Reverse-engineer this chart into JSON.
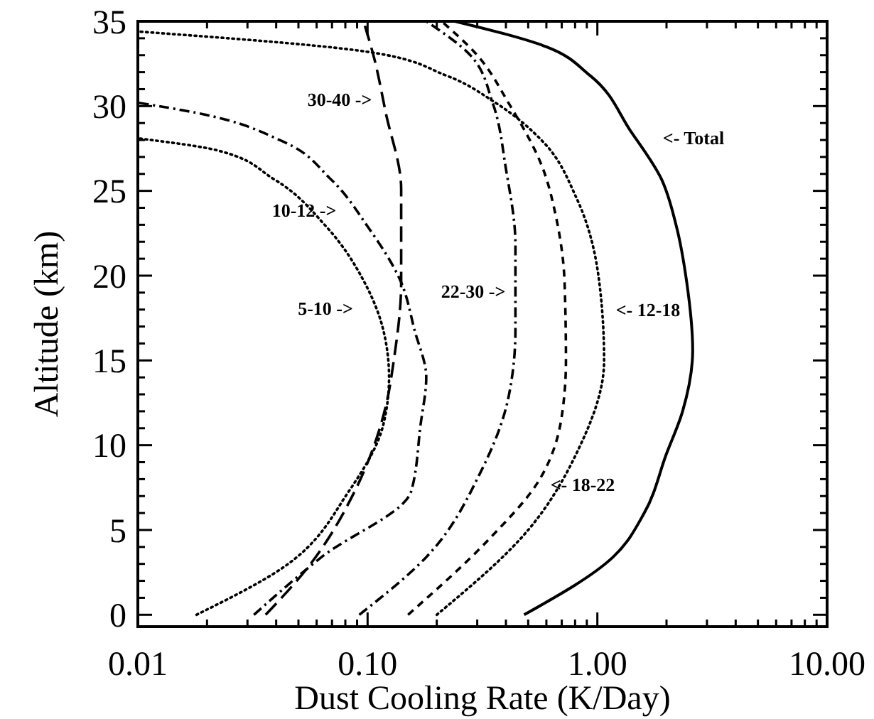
{
  "chart_data": {
    "type": "line",
    "xlabel": "Dust Cooling Rate (K/Day)",
    "ylabel": "Altitude (km)",
    "log": "x",
    "xlim": [
      0.01,
      10
    ],
    "ylim": [
      -0.7,
      35
    ],
    "xticks": [
      {
        "value": 0.01,
        "label": "0.01"
      },
      {
        "value": 0.02,
        "label": null
      },
      {
        "value": 0.03,
        "label": null
      },
      {
        "value": 0.04,
        "label": null
      },
      {
        "value": 0.05,
        "label": null
      },
      {
        "value": 0.06,
        "label": null
      },
      {
        "value": 0.07,
        "label": null
      },
      {
        "value": 0.08,
        "label": null
      },
      {
        "value": 0.09,
        "label": null
      },
      {
        "value": 0.1,
        "label": "0.10"
      },
      {
        "value": 0.2,
        "label": null
      },
      {
        "value": 0.3,
        "label": null
      },
      {
        "value": 0.4,
        "label": null
      },
      {
        "value": 0.5,
        "label": null
      },
      {
        "value": 0.6,
        "label": null
      },
      {
        "value": 0.7,
        "label": null
      },
      {
        "value": 0.8,
        "label": null
      },
      {
        "value": 0.9,
        "label": null
      },
      {
        "value": 1,
        "label": "1.00"
      },
      {
        "value": 2,
        "label": null
      },
      {
        "value": 3,
        "label": null
      },
      {
        "value": 4,
        "label": null
      },
      {
        "value": 5,
        "label": null
      },
      {
        "value": 6,
        "label": null
      },
      {
        "value": 7,
        "label": null
      },
      {
        "value": 8,
        "label": null
      },
      {
        "value": 9,
        "label": null
      },
      {
        "value": 10,
        "label": "10.00"
      }
    ],
    "yticks": [
      0,
      {
        "value": 1,
        "label": null
      },
      {
        "value": 2,
        "label": null
      },
      {
        "value": 3,
        "label": null
      },
      {
        "value": 4,
        "label": null
      },
      5,
      {
        "value": 6,
        "label": null
      },
      {
        "value": 7,
        "label": null
      },
      {
        "value": 8,
        "label": null
      },
      {
        "value": 9,
        "label": null
      },
      10,
      {
        "value": 11,
        "label": null
      },
      {
        "value": 12,
        "label": null
      },
      {
        "value": 13,
        "label": null
      },
      {
        "value": 14,
        "label": null
      },
      15,
      {
        "value": 16,
        "label": null
      },
      {
        "value": 17,
        "label": null
      },
      {
        "value": 18,
        "label": null
      },
      {
        "value": 19,
        "label": null
      },
      20,
      {
        "value": 21,
        "label": null
      },
      {
        "value": 22,
        "label": null
      },
      {
        "value": 23,
        "label": null
      },
      {
        "value": 24,
        "label": null
      },
      25,
      {
        "value": 26,
        "label": null
      },
      {
        "value": 27,
        "label": null
      },
      {
        "value": 28,
        "label": null
      },
      {
        "value": 29,
        "label": null
      },
      30,
      {
        "value": 31,
        "label": null
      },
      {
        "value": 32,
        "label": null
      },
      {
        "value": 33,
        "label": null
      },
      {
        "value": 34,
        "label": null
      },
      35
    ],
    "grid": false,
    "marker": "none",
    "series": [
      {
        "color": "#000000",
        "line_style": "solid",
        "x": [
          0.48,
          1.17,
          1.6,
          2.0,
          2.35,
          2.6,
          2.45,
          2.2,
          1.9,
          1.4,
          0.93,
          0.6,
          0.24
        ],
        "values": [
          0,
          3.4,
          6,
          9.5,
          12,
          15.6,
          19.6,
          23,
          25.7,
          28.5,
          31.8,
          33.5,
          35
        ]
      },
      {
        "color": "#000000",
        "line_style": "dotted",
        "x": [
          0.2,
          0.5,
          0.81,
          1.07,
          1.02,
          0.81,
          0.58,
          0.36,
          0.22,
          0.1,
          0.01
        ],
        "values": [
          0,
          5,
          9.5,
          15,
          19.6,
          24.6,
          27.9,
          30.2,
          31.8,
          33.2,
          34.4
        ]
      },
      {
        "color": "#000000",
        "line_style": "dashed",
        "x": [
          0.15,
          0.34,
          0.55,
          0.7,
          0.73,
          0.72,
          0.66,
          0.58,
          0.41,
          0.3,
          0.21
        ],
        "values": [
          0,
          4.5,
          7.8,
          11.7,
          15,
          19.6,
          23.5,
          26.3,
          30.2,
          33,
          35
        ]
      },
      {
        "color": "#000000",
        "line_style": "dashdot",
        "x": [
          0.092,
          0.18,
          0.31,
          0.41,
          0.44,
          0.44,
          0.4,
          0.35,
          0.28,
          0.18
        ],
        "values": [
          0,
          3.4,
          8.4,
          12.8,
          16.8,
          21.8,
          26.3,
          30.2,
          33,
          35
        ]
      },
      {
        "color": "#000000",
        "line_style": "longdash",
        "x": [
          0.036,
          0.055,
          0.088,
          0.12,
          0.13,
          0.14,
          0.14,
          0.12,
          0.106,
          0.096
        ],
        "values": [
          0,
          2.8,
          7.3,
          12.3,
          15,
          19.6,
          25.1,
          29.6,
          33,
          35
        ]
      },
      {
        "color": "#000000",
        "line_style": "dashdot",
        "x": [
          0.032,
          0.063,
          0.155,
          0.17,
          0.18,
          0.16,
          0.14,
          0.1,
          0.069,
          0.043,
          0.018,
          0.01
        ],
        "values": [
          0,
          3.4,
          7.3,
          11.2,
          14,
          16.8,
          19.6,
          22.9,
          25.7,
          27.9,
          29.6,
          30.2
        ]
      },
      {
        "color": "#000000",
        "line_style": "dotted",
        "x": [
          0.018,
          0.043,
          0.083,
          0.117,
          0.124,
          0.117,
          0.097,
          0.066,
          0.039,
          0.022,
          0.01
        ],
        "values": [
          0,
          2.8,
          7.3,
          11.2,
          14,
          16.8,
          19.6,
          22.9,
          25.7,
          27.4,
          28.1
        ]
      }
    ],
    "annotations": [
      "30-40 ->",
      "10-12 ->",
      "5-10 ->",
      "22-30 ->",
      "<- 12-18",
      "<- 18-22",
      "<- Total"
    ]
  }
}
